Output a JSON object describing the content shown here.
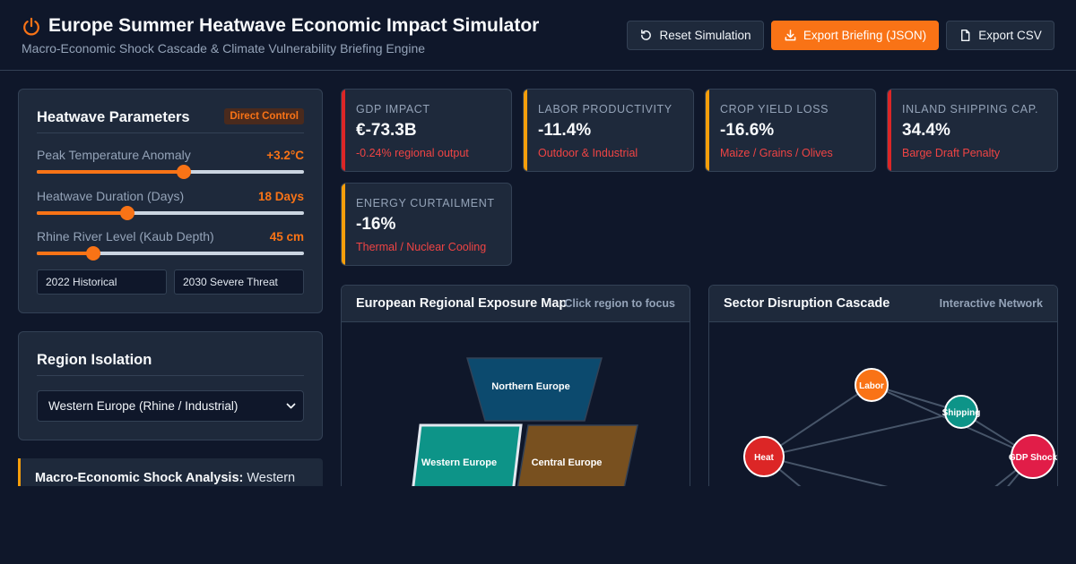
{
  "header": {
    "title": "Europe Summer Heatwave Economic Impact Simulator",
    "subtitle": "Macro-Economic Shock Cascade & Climate Vulnerability Briefing Engine",
    "buttons": {
      "reset": "Reset Simulation",
      "export_json": "Export Briefing (JSON)",
      "export_csv": "Export CSV"
    },
    "accent": "#f97316"
  },
  "params": {
    "title": "Heatwave Parameters",
    "badge": "Direct Control",
    "temp": {
      "label": "Peak Temperature Anomaly",
      "value": "+3.2°C",
      "fill_fraction": 0.55
    },
    "duration": {
      "label": "Heatwave Duration (Days)",
      "value": "18 Days",
      "fill_fraction": 0.34
    },
    "rhine": {
      "label": "Rhine River Level (Kaub Depth)",
      "value": "45 cm",
      "fill_fraction": 0.21
    },
    "presets": [
      "2022 Historical",
      "2030 Severe Threat"
    ]
  },
  "region": {
    "title": "Region Isolation",
    "selected": "Western Europe (Rhine / Industrial)"
  },
  "analysis": {
    "heading": "Macro-Economic Shock Analysis:",
    "text": "Western"
  },
  "kpis": [
    {
      "label": "GDP IMPACT",
      "value": "€-73.3B",
      "sub": "-0.24% regional output",
      "color": "#dc2626"
    },
    {
      "label": "LABOR PRODUCTIVITY",
      "value": "-11.4%",
      "sub": "Outdoor & Industrial",
      "color": "#f59e0b"
    },
    {
      "label": "CROP YIELD LOSS",
      "value": "-16.6%",
      "sub": "Maize / Grains / Olives",
      "color": "#f59e0b"
    },
    {
      "label": "INLAND SHIPPING CAP.",
      "value": "34.4%",
      "sub": "Barge Draft Penalty",
      "color": "#dc2626"
    },
    {
      "label": "ENERGY CURTAILMENT",
      "value": "-16%",
      "sub": "Thermal / Nuclear Cooling",
      "color": "#f59e0b"
    }
  ],
  "map": {
    "title": "European Regional Exposure Map",
    "hint": "Click region to focus",
    "regions": {
      "north": {
        "label": "Northern Europe",
        "color": "#0c4a6e"
      },
      "west": {
        "label": "Western Europe",
        "color": "#0d9488"
      },
      "central": {
        "label": "Central Europe",
        "color": "#78501f"
      }
    }
  },
  "network": {
    "title": "Sector Disruption Cascade",
    "hint": "Interactive Network",
    "nodes": {
      "heat": {
        "label": "Heat",
        "color": "#dc2626"
      },
      "labor": {
        "label": "Labor",
        "color": "#f97316"
      },
      "shipping": {
        "label": "Shipping",
        "color": "#0d9488"
      },
      "gdp": {
        "label": "GDP Shock",
        "color": "#e11d48"
      }
    }
  }
}
